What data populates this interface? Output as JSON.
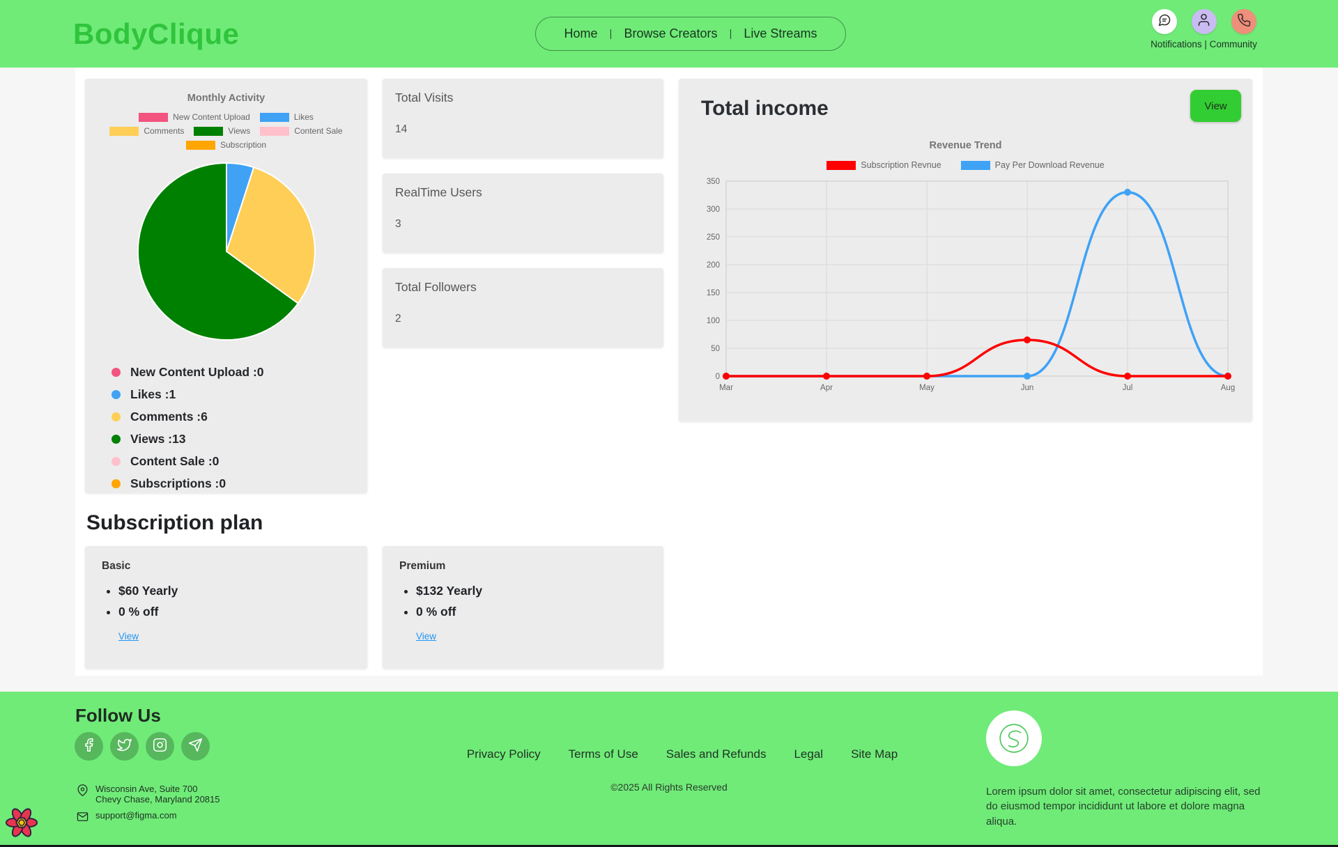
{
  "header": {
    "logo": "BodyClique",
    "nav": [
      {
        "label": "Home"
      },
      {
        "label": "Browse Creators"
      },
      {
        "label": "Live Streams"
      }
    ],
    "nav_separator": "|",
    "account": {
      "label_left": "Notifications",
      "separator": "|",
      "label_right": "Community"
    }
  },
  "activity": {
    "stats": [
      {
        "color": "#f3537f",
        "text": "New Content Upload :0"
      },
      {
        "color": "#3fa2f5",
        "text": "Likes :1"
      },
      {
        "color": "#ffce56",
        "text": "Comments :6"
      },
      {
        "color": "#008000",
        "text": "Views :13"
      },
      {
        "color": "#ffc0cb",
        "text": "Content Sale :0"
      },
      {
        "color": "#ffa500",
        "text": "Subscriptions :0"
      }
    ]
  },
  "summary_cards": [
    {
      "title": "Total Visits",
      "value": "14"
    },
    {
      "title": "RealTime Users",
      "value": "3"
    },
    {
      "title": "Total Followers",
      "value": "2"
    }
  ],
  "income": {
    "title": "Total income",
    "view_button": "View"
  },
  "subscription": {
    "heading": "Subscription plan",
    "plans": [
      {
        "name": "Basic",
        "bullets": [
          "$60 Yearly",
          "0 % off"
        ],
        "link": "View"
      },
      {
        "name": "Premium",
        "bullets": [
          "$132 Yearly",
          "0 % off"
        ],
        "link": "View"
      }
    ]
  },
  "footer": {
    "follow": "Follow Us",
    "social_icons": [
      "facebook-icon",
      "twitter-icon",
      "instagram-icon",
      "telegram-icon"
    ],
    "links": [
      "Privacy Policy",
      "Terms of Use",
      "Sales and Refunds",
      "Legal",
      "Site Map"
    ],
    "copyright": "©2025 All Rights Reserved",
    "address_line1": "Wisconsin Ave, Suite 700",
    "address_line2": "Chevy Chase, Maryland 20815",
    "email": "support@figma.com",
    "about": "Lorem ipsum dolor sit amet, consectetur adipiscing elit, sed do eiusmod tempor incididunt ut labore et dolore magna aliqua."
  },
  "chart_data": [
    {
      "type": "pie",
      "title": "Monthly Activity",
      "labels": [
        "New Content Upload",
        "Likes",
        "Comments",
        "Views",
        "Content Sale",
        "Subscription"
      ],
      "values": [
        0,
        1,
        6,
        13,
        0,
        0
      ],
      "colors": [
        "#f3537f",
        "#3fa2f5",
        "#ffce56",
        "#008000",
        "#ffc0cb",
        "#ffa500"
      ],
      "legend_position": "top"
    },
    {
      "type": "line",
      "title": "Revenue Trend",
      "categories": [
        "Mar",
        "Apr",
        "May",
        "Jun",
        "Jul",
        "Aug"
      ],
      "series": [
        {
          "name": "Subscription Revnue",
          "color": "#ff0000",
          "values": [
            0,
            0,
            0,
            65,
            0,
            0
          ]
        },
        {
          "name": "Pay Per Download Revenue",
          "color": "#3fa2f5",
          "values": [
            0,
            0,
            0,
            0,
            330,
            0
          ]
        }
      ],
      "ylim": [
        0,
        350
      ],
      "yticks": [
        0,
        50,
        100,
        150,
        200,
        250,
        300,
        350
      ],
      "grid": true,
      "legend_position": "top"
    }
  ],
  "colors": {
    "header_bg": "#70eb78",
    "logo_green": "#30c43c",
    "card_bg": "#ececec",
    "view_button_green": "#32cd32",
    "link_blue": "#2196f3",
    "social_circle_green": "#57b75d"
  }
}
